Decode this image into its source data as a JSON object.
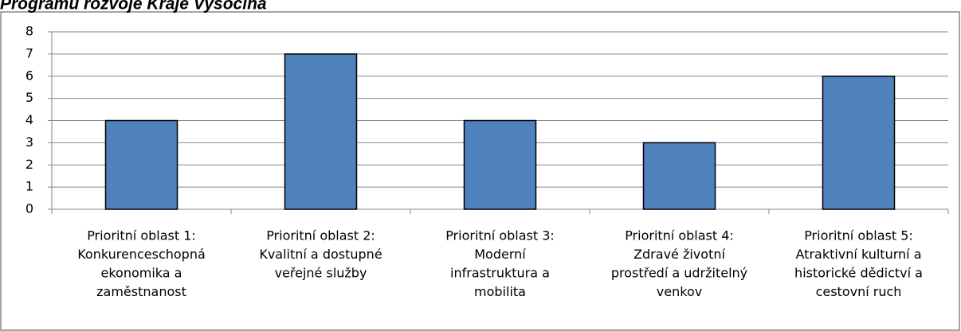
{
  "chart_data": {
    "type": "bar",
    "title": "Programu rozvoje Kraje Vysočina",
    "categories": [
      [
        "Prioritní oblast 1:",
        "Konkurenceschopná",
        "ekonomika a",
        "zaměstnanost"
      ],
      [
        "Prioritní oblast 2:",
        "Kvalitní a dostupné",
        "veřejné služby"
      ],
      [
        "Prioritní oblast 3:",
        "Moderní",
        "infrastruktura a",
        "mobilita"
      ],
      [
        "Prioritní oblast 4:",
        "Zdravé životní",
        "prostředí a udržitelný",
        "venkov"
      ],
      [
        "Prioritní oblast 5:",
        "Atraktivní kulturní a",
        "historické dědictví a",
        "cestovní ruch"
      ]
    ],
    "values": [
      4,
      7,
      4,
      3,
      6
    ],
    "color": "#4f81bd",
    "ylim": [
      0,
      8
    ],
    "yticks": [
      0,
      1,
      2,
      3,
      4,
      5,
      6,
      7,
      8
    ],
    "grid": true
  }
}
